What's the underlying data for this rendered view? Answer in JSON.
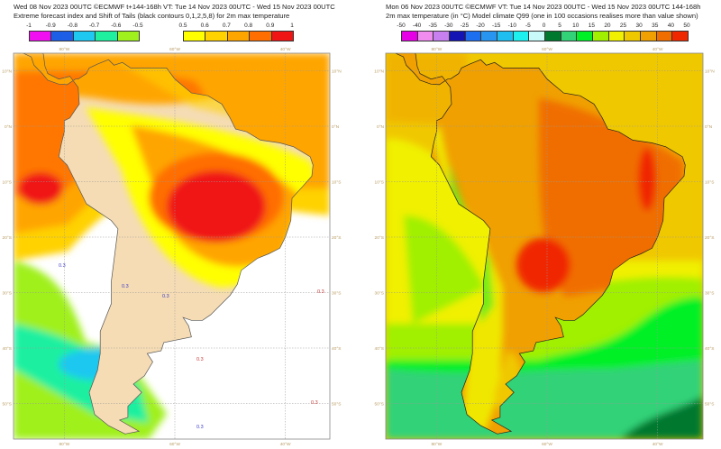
{
  "chart_data": [
    {
      "type": "heatmap",
      "panel": "left",
      "title_line1": "Wed 08 Nov 2023 00UTC ©ECMWF t+144-168h  VT: Tue 14 Nov 2023 00UTC - Wed 15 Nov 2023 00UTC",
      "title_line2": "Extreme forecast index and Shift of Tails (black contours 0,1,2,5,8) for 2m max temperature",
      "colorbar_negative": {
        "ticks": [
          "-1",
          "-0.9",
          "-0.8",
          "-0.7",
          "-0.6",
          "-0.5"
        ],
        "colors": [
          "#f00ff0",
          "#1e5ee6",
          "#1ec8f0",
          "#1ef0a0",
          "#a0f01e"
        ]
      },
      "colorbar_positive": {
        "ticks": [
          "0.5",
          "0.6",
          "0.7",
          "0.8",
          "0.9",
          "1"
        ],
        "colors": [
          "#ffff00",
          "#ffd200",
          "#ffa500",
          "#ff6e00",
          "#f01414"
        ]
      },
      "contour_labels": [
        "0.3",
        "0.3",
        "0.3",
        "0.3",
        "0.3",
        "0.3",
        "0.3"
      ],
      "lon_labels": [
        "80°W",
        "60°W",
        "40°W"
      ],
      "lat_labels": [
        "10°N",
        "0°N",
        "10°S",
        "20°S",
        "30°S",
        "40°S",
        "50°S"
      ],
      "colors": {
        "land": "#f5dcb4",
        "ocean": "#ffffff"
      }
    },
    {
      "type": "heatmap",
      "panel": "right",
      "title_line1": "Mon 06 Nov 2023 00UTC ©ECMWF VT: Tue 14 Nov 2023 00UTC - Wed 15 Nov 2023 00UTC    144-168h",
      "title_line2": "2m max temperature (in °C)  Model climate Q99 (one in 100 occasions realises more than value shown)",
      "colorbar": {
        "ticks": [
          "-50",
          "-40",
          "-35",
          "-30",
          "-25",
          "-20",
          "-15",
          "-10",
          "-5",
          "0",
          "5",
          "10",
          "15",
          "20",
          "25",
          "30",
          "35",
          "40",
          "50"
        ],
        "colors": [
          "#e600e6",
          "#f08cf0",
          "#c880f0",
          "#1414b4",
          "#1e6ef0",
          "#2896f0",
          "#1ebef0",
          "#1ef0f0",
          "#c8fafa",
          "#00782d",
          "#32d278",
          "#00f028",
          "#a0f000",
          "#f0f000",
          "#f0c800",
          "#f0a000",
          "#f06e00",
          "#f02800"
        ]
      },
      "lon_labels": [
        "80°W",
        "60°W",
        "40°W"
      ],
      "lat_labels": [
        "10°N",
        "0°N",
        "10°S",
        "20°S",
        "30°S",
        "40°S",
        "50°S"
      ]
    }
  ]
}
